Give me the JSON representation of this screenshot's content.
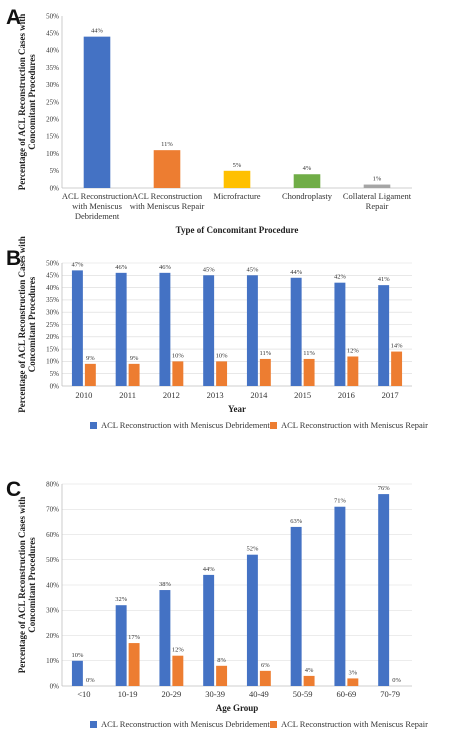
{
  "colors": {
    "blue": "#4472C4",
    "orange": "#ED7D31",
    "yellow": "#FFC000",
    "green": "#70AD47",
    "gray": "#A5A5A5"
  },
  "chart_data": [
    {
      "panel": "A",
      "type": "bar",
      "categories": [
        "ACL Reconstruction with Meniscus Debridement",
        "ACL Reconstruction with Meniscus Repair",
        "Microfracture",
        "Chondroplasty",
        "Collateral Ligament Repair"
      ],
      "category_lines": [
        [
          "ACL Reconstruction",
          "with Meniscus",
          "Debridement"
        ],
        [
          "ACL Reconstruction",
          "with Meniscus Repair"
        ],
        [
          "Microfracture"
        ],
        [
          "Chondroplasty"
        ],
        [
          "Collateral Ligament",
          "Repair"
        ]
      ],
      "values": [
        44,
        11,
        5,
        4,
        1
      ],
      "data_labels": [
        "44%",
        "11%",
        "5%",
        "4%",
        "1%"
      ],
      "bar_colors": [
        "#4472C4",
        "#ED7D31",
        "#FFC000",
        "#70AD47",
        "#A5A5A5"
      ],
      "ylim": [
        0,
        50
      ],
      "yticks": [
        "0%",
        "5%",
        "10%",
        "15%",
        "20%",
        "25%",
        "30%",
        "35%",
        "40%",
        "45%",
        "50%"
      ],
      "ylabel": [
        "Percentage of ACL Reconstruction Cases with",
        "Concomitant Procedures"
      ],
      "xlabel": "Type of Concomitant Procedure",
      "grid": false,
      "legend": null
    },
    {
      "panel": "B",
      "type": "bar",
      "categories": [
        "2010",
        "2011",
        "2012",
        "2013",
        "2014",
        "2015",
        "2016",
        "2017"
      ],
      "series": [
        {
          "name": "ACL Reconstruction with Meniscus Debridement",
          "values": [
            47,
            46,
            46,
            45,
            45,
            44,
            42,
            41
          ],
          "data_labels": [
            "47%",
            "46%",
            "46%",
            "45%",
            "45%",
            "44%",
            "42%",
            "41%"
          ],
          "color": "#4472C4"
        },
        {
          "name": "ACL Reconstruction with Meniscus Repair",
          "values": [
            9,
            9,
            10,
            10,
            11,
            11,
            12,
            14
          ],
          "data_labels": [
            "9%",
            "9%",
            "10%",
            "10%",
            "11%",
            "11%",
            "12%",
            "14%"
          ],
          "color": "#ED7D31"
        }
      ],
      "ylim": [
        0,
        50
      ],
      "yticks": [
        "0%",
        "5%",
        "10%",
        "15%",
        "20%",
        "25%",
        "30%",
        "35%",
        "40%",
        "45%",
        "50%"
      ],
      "ylabel": [
        "Percentage of ACL Reconstruction Cases with",
        "Concomitant Procedures"
      ],
      "xlabel": "Year",
      "grid": true,
      "legend": "bottom"
    },
    {
      "panel": "C",
      "type": "bar",
      "categories": [
        "<10",
        "10-19",
        "20-29",
        "30-39",
        "40-49",
        "50-59",
        "60-69",
        "70-79"
      ],
      "series": [
        {
          "name": "ACL Reconstruction with Meniscus Debridement",
          "values": [
            10,
            32,
            38,
            44,
            52,
            63,
            71,
            76
          ],
          "data_labels": [
            "10%",
            "32%",
            "38%",
            "44%",
            "52%",
            "63%",
            "71%",
            "76%"
          ],
          "color": "#4472C4"
        },
        {
          "name": "ACL Reconstruction with Meniscus Repair",
          "values": [
            0,
            17,
            12,
            8,
            6,
            4,
            3,
            0
          ],
          "data_labels": [
            "0%",
            "17%",
            "12%",
            "8%",
            "6%",
            "4%",
            "3%",
            "0%"
          ],
          "color": "#ED7D31"
        }
      ],
      "ylim": [
        0,
        80
      ],
      "yticks": [
        "0%",
        "10%",
        "20%",
        "30%",
        "40%",
        "50%",
        "60%",
        "70%",
        "80%"
      ],
      "ylabel": [
        "Percentage of ACL Reconstruction Cases with",
        "Concomitant Procedures"
      ],
      "xlabel": "Age Group",
      "grid": true,
      "legend": "bottom"
    }
  ]
}
